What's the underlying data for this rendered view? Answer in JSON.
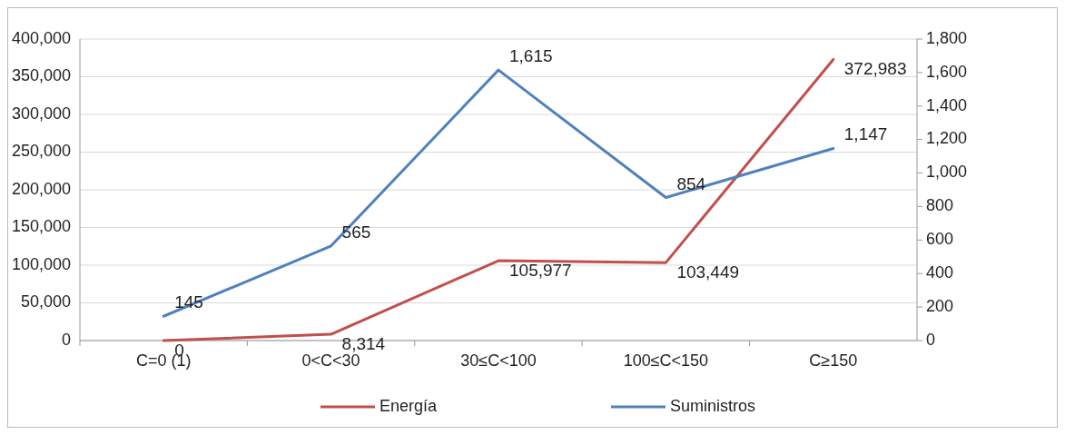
{
  "chart_data": {
    "type": "line",
    "categories": [
      "C=0 (1)",
      "0<C<30",
      "30≤C<100",
      "100≤C<150",
      "C≥150"
    ],
    "series": [
      {
        "name": "Energía",
        "color": "#c0504d",
        "values": [
          0,
          8314,
          105977,
          103449,
          372983
        ],
        "value_labels": [
          "0",
          "8,314",
          "105,977",
          "103,449",
          "372,983"
        ]
      },
      {
        "name": "Suministros",
        "color": "#4f81bd",
        "axis": "y2",
        "values": [
          145,
          565,
          1615,
          854,
          1147
        ],
        "value_labels": [
          "145",
          "565",
          "1,615",
          "854",
          "1,147"
        ]
      }
    ],
    "ylim": [
      0,
      400000
    ],
    "yticks": [
      {
        "value": 0,
        "label": "0"
      },
      {
        "value": 50000,
        "label": "50,000"
      },
      {
        "value": 100000,
        "label": "100,000"
      },
      {
        "value": 150000,
        "label": "150,000"
      },
      {
        "value": 200000,
        "label": "200,000"
      },
      {
        "value": 250000,
        "label": "250,000"
      },
      {
        "value": 300000,
        "label": "300,000"
      },
      {
        "value": 350000,
        "label": "350,000"
      },
      {
        "value": 400000,
        "label": "400,000"
      }
    ],
    "y2lim": [
      0,
      1800
    ],
    "y2ticks": [
      {
        "value": 0,
        "label": "0"
      },
      {
        "value": 200,
        "label": "200"
      },
      {
        "value": 400,
        "label": "400"
      },
      {
        "value": 600,
        "label": "600"
      },
      {
        "value": 800,
        "label": "800"
      },
      {
        "value": 1000,
        "label": "1,000"
      },
      {
        "value": 1200,
        "label": "1,200"
      },
      {
        "value": 1400,
        "label": "1,400"
      },
      {
        "value": 1600,
        "label": "1,600"
      },
      {
        "value": 1800,
        "label": "1,800"
      }
    ],
    "grid": "y",
    "legend": "bottom",
    "marker": "none",
    "line_style": "solid"
  }
}
